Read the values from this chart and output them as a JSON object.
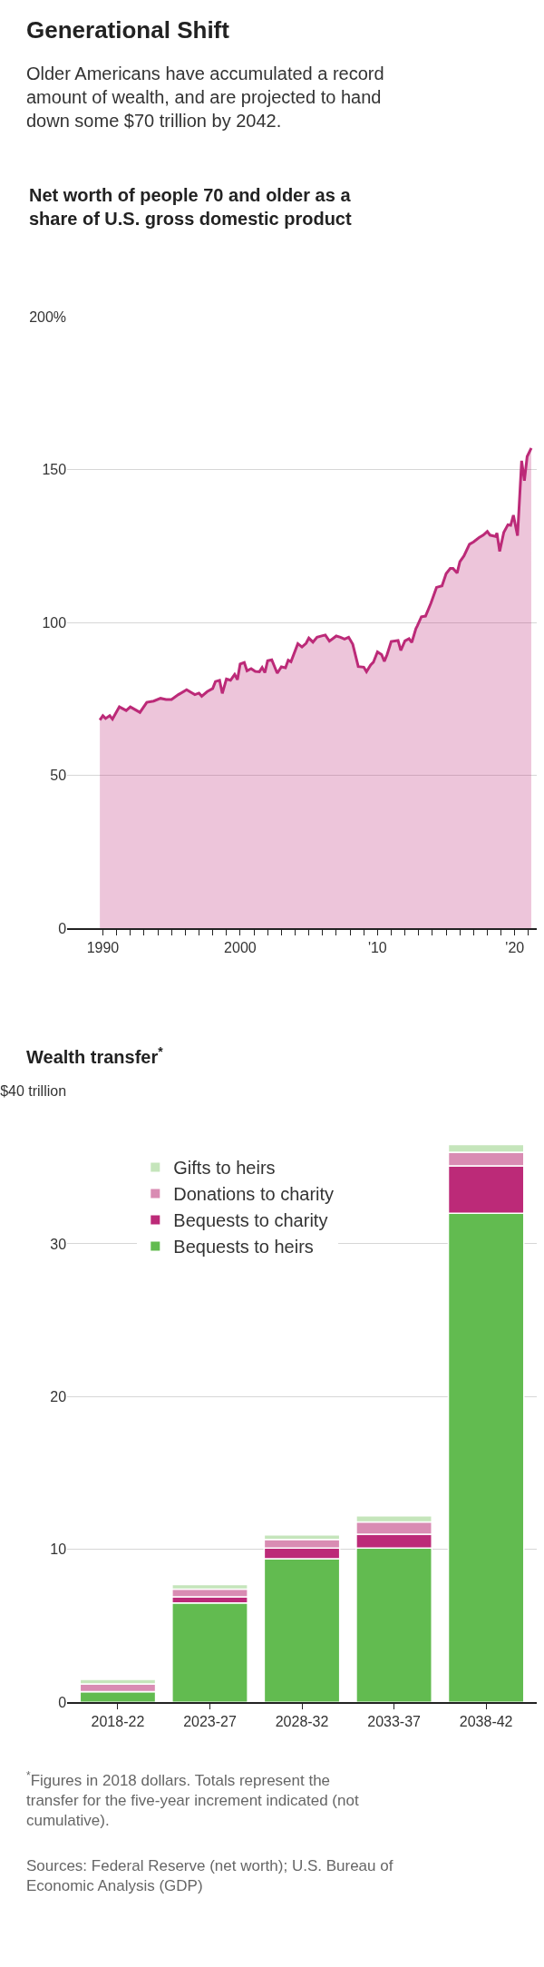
{
  "chart_data": [
    {
      "type": "area",
      "title": "Generational Shift",
      "subtitle": "Older Americans have accumulated a record amount of wealth, and are projected to hand down some $70 trillion by 2042.",
      "ylabel": "Net worth of people 70 and older as a share of U.S. gross domestic product",
      "x": [
        1989.78,
        1990.0,
        1990.2,
        1990.5,
        1990.7,
        1991.2,
        1991.7,
        1992.0,
        1992.7,
        1993.2,
        1993.7,
        1994.2,
        1994.6,
        1995.0,
        1995.5,
        1996.1,
        1996.7,
        1997.0,
        1997.2,
        1997.6,
        1998.0,
        1998.2,
        1998.5,
        1998.7,
        1999.0,
        1999.3,
        1999.6,
        1999.8,
        2000.0,
        2000.3,
        2000.5,
        2000.8,
        2001.1,
        2001.4,
        2001.6,
        2001.8,
        2002.0,
        2002.3,
        2002.7,
        2003.0,
        2003.3,
        2003.5,
        2003.7,
        2004.2,
        2004.5,
        2004.8,
        2005.0,
        2005.3,
        2005.6,
        2006.0,
        2006.2,
        2006.5,
        2007.0,
        2007.3,
        2007.6,
        2007.9,
        2008.2,
        2008.6,
        2009.0,
        2009.2,
        2009.5,
        2009.7,
        2010.0,
        2010.3,
        2010.5,
        2010.7,
        2011.0,
        2011.5,
        2011.7,
        2012.0,
        2012.3,
        2012.5,
        2012.8,
        2012.9,
        2013.2,
        2013.5,
        2013.9,
        2014.3,
        2014.7,
        2015.0,
        2015.3,
        2015.5,
        2015.8,
        2016.0,
        2016.3,
        2016.7,
        2017.0,
        2017.4,
        2017.7,
        2018.0,
        2018.2,
        2018.6,
        2018.7,
        2018.9,
        2019.2,
        2019.5,
        2019.7,
        2019.9,
        2020.2,
        2020.5,
        2020.7,
        2020.9,
        2021.2
      ],
      "series": [
        {
          "color": "#bc2a78",
          "values": [
            68.1,
            69.5,
            68.6,
            69.5,
            68.4,
            72.4,
            71.2,
            72.4,
            70.6,
            73.9,
            74.3,
            75.2,
            74.8,
            74.8,
            76.4,
            78.0,
            76.4,
            76.9,
            75.9,
            77.4,
            78.4,
            80.7,
            81.1,
            76.8,
            81.5,
            81.1,
            83.0,
            81.3,
            86.4,
            86.9,
            84.2,
            84.9,
            84.0,
            83.9,
            85.3,
            83.6,
            87.5,
            87.8,
            83.4,
            85.5,
            85.2,
            87.7,
            87.2,
            93.1,
            92.0,
            93.2,
            94.9,
            93.6,
            95.2,
            95.7,
            95.9,
            93.9,
            95.6,
            95.2,
            94.6,
            95.2,
            92.9,
            85.6,
            85.4,
            83.9,
            86.1,
            87.0,
            90.4,
            89.5,
            87.3,
            89.5,
            93.8,
            94.1,
            90.9,
            94.0,
            94.7,
            93.5,
            98.0,
            98.9,
            101.9,
            102.1,
            106.4,
            111.5,
            112.0,
            116.0,
            117.7,
            117.7,
            116.2,
            119.9,
            121.8,
            125.6,
            126.4,
            127.8,
            128.6,
            129.8,
            128.6,
            128.2,
            129.3,
            123.3,
            129.5,
            132.0,
            131.8,
            135.1,
            128.4,
            152.9,
            146.4,
            154.3,
            157.1
          ]
        }
      ],
      "xlim": [
        1987.4,
        2021.6
      ],
      "xticks": [
        {
          "value": 1990,
          "label": "1990"
        },
        {
          "value": 1991,
          "label": null
        },
        {
          "value": 1992,
          "label": null
        },
        {
          "value": 1993,
          "label": null
        },
        {
          "value": 1994,
          "label": null
        },
        {
          "value": 1995,
          "label": null
        },
        {
          "value": 1996,
          "label": null
        },
        {
          "value": 1997,
          "label": null
        },
        {
          "value": 1998,
          "label": null
        },
        {
          "value": 1999,
          "label": null
        },
        {
          "value": 2000,
          "label": "2000"
        },
        {
          "value": 2001,
          "label": null
        },
        {
          "value": 2002,
          "label": null
        },
        {
          "value": 2003,
          "label": null
        },
        {
          "value": 2004,
          "label": null
        },
        {
          "value": 2005,
          "label": null
        },
        {
          "value": 2006,
          "label": null
        },
        {
          "value": 2007,
          "label": null
        },
        {
          "value": 2008,
          "label": null
        },
        {
          "value": 2009,
          "label": null
        },
        {
          "value": 2010,
          "label": "'10"
        },
        {
          "value": 2011,
          "label": null
        },
        {
          "value": 2012,
          "label": null
        },
        {
          "value": 2013,
          "label": null
        },
        {
          "value": 2014,
          "label": null
        },
        {
          "value": 2015,
          "label": null
        },
        {
          "value": 2016,
          "label": null
        },
        {
          "value": 2017,
          "label": null
        },
        {
          "value": 2018,
          "label": null
        },
        {
          "value": 2019,
          "label": null
        },
        {
          "value": 2020,
          "label": "'20"
        },
        {
          "value": 2021,
          "label": null
        }
      ],
      "ylim": [
        0,
        200
      ],
      "yticks": [
        0,
        50,
        100,
        150,
        {
          "value": 200,
          "label": "200%"
        }
      ],
      "grid": "y",
      "legend": false,
      "line_style": "solid",
      "marker": "none"
    },
    {
      "type": "bar",
      "stacked": true,
      "title": "Wealth transfer$^{*}$",
      "categories": [
        "2018-22",
        "2023-27",
        "2028-32",
        "2033-37",
        "2038-42"
      ],
      "series": [
        {
          "name": "Bequests to heirs",
          "color": "#62bb50",
          "values": [
            0.7,
            6.5,
            9.4,
            10.1,
            32.0
          ]
        },
        {
          "name": "Bequests to charity",
          "color": "#bc2a78",
          "values": [
            0,
            0.4,
            0.7,
            0.9,
            3.1
          ]
        },
        {
          "name": "Donations to charity",
          "color": "#d98cb3",
          "values": [
            0.5,
            0.5,
            0.55,
            0.8,
            0.9
          ]
        },
        {
          "name": "Gifts to heirs",
          "color": "#c5e5bb",
          "values": [
            0.3,
            0.3,
            0.3,
            0.4,
            0.5
          ]
        }
      ],
      "ylim": [
        0,
        40
      ],
      "yticks": [
        0,
        10,
        20,
        30,
        {
          "value": 40,
          "label": "$40 trillion"
        }
      ],
      "grid": "y",
      "legend": "top left",
      "annotations": [
        "$^{*}$Figures in 2018 dollars. Totals represent the transfer for the five-year increment indicated (not cumulative).",
        "Sources: Federal Reserve (net worth); U.S. Bureau of Economic Analysis (GDP)"
      ]
    }
  ]
}
